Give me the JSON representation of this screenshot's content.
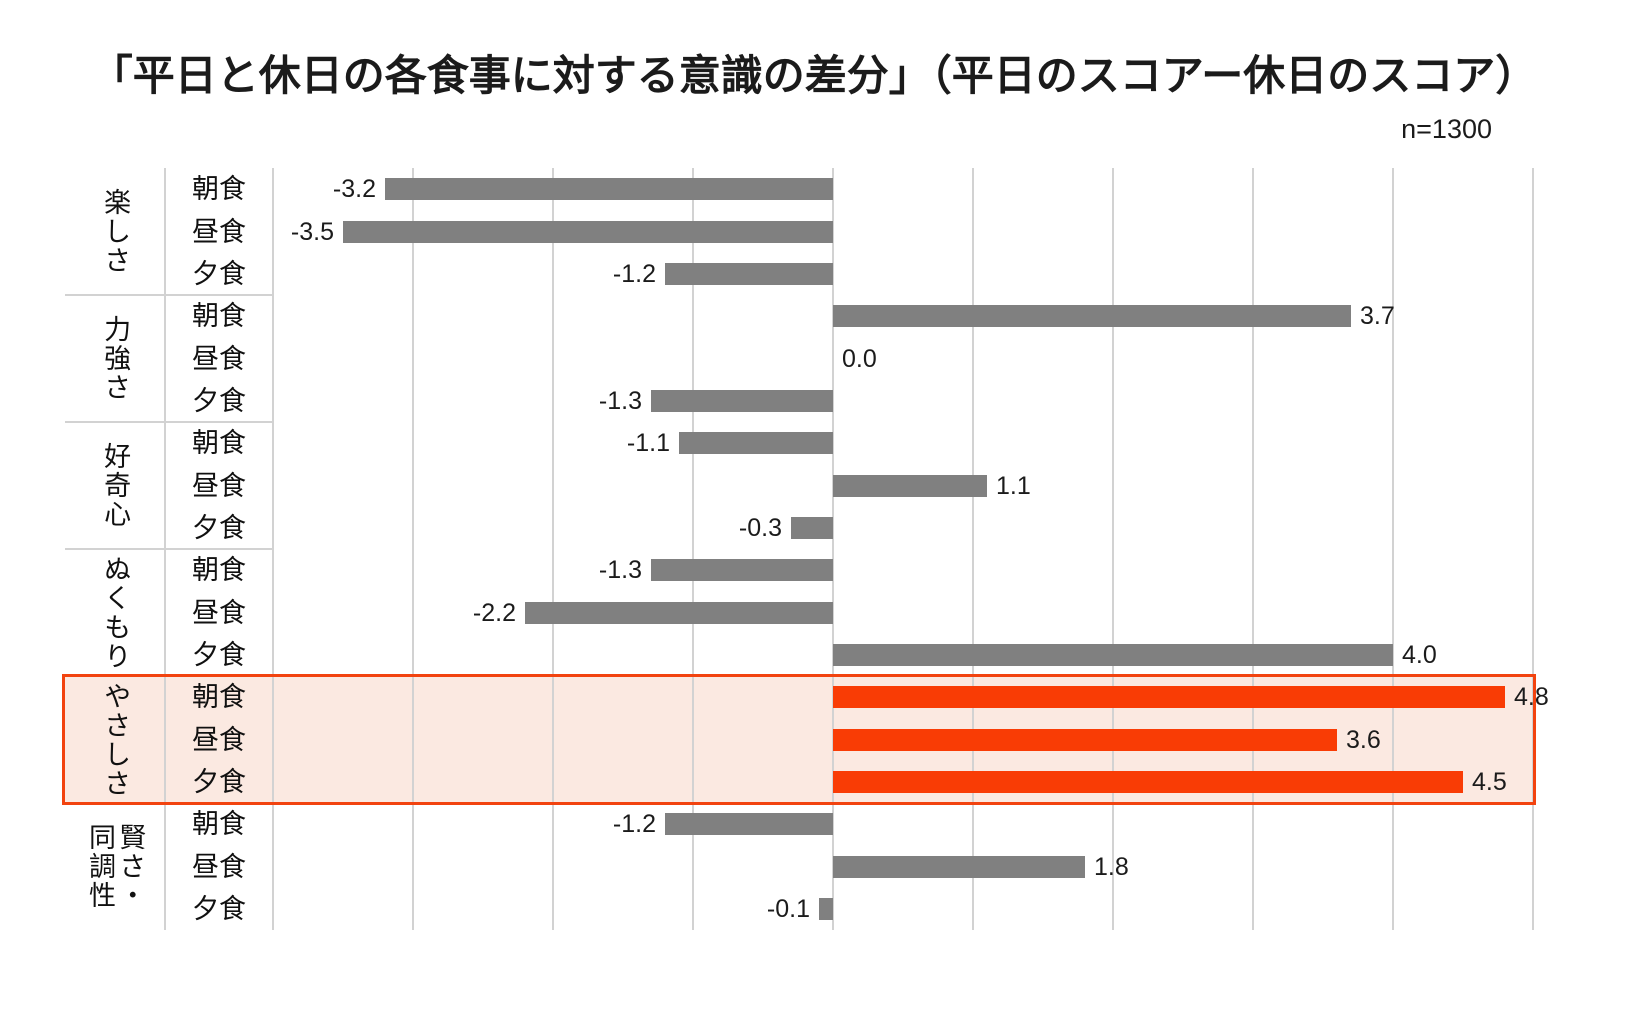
{
  "title": "「平日と休日の各食事に対する意識の差分」（平日のスコアー休日のスコア）",
  "sample_size_label": "n=1300",
  "chart_data": {
    "type": "bar",
    "orientation": "horizontal",
    "title": "「平日と休日の各食事に対する意識の差分」（平日のスコアー休日のスコア）",
    "sample_size": "n=1300",
    "xlim": [
      -4,
      5
    ],
    "gridline_step": 1,
    "grid": true,
    "value_format": "one-decimal",
    "groups": [
      {
        "label": "楽しさ",
        "highlight": false,
        "rows": [
          {
            "meal": "朝食",
            "value": -3.2
          },
          {
            "meal": "昼食",
            "value": -3.5
          },
          {
            "meal": "夕食",
            "value": -1.2
          }
        ]
      },
      {
        "label": "力強さ",
        "highlight": false,
        "rows": [
          {
            "meal": "朝食",
            "value": 3.7
          },
          {
            "meal": "昼食",
            "value": 0.0
          },
          {
            "meal": "夕食",
            "value": -1.3
          }
        ]
      },
      {
        "label": "好奇心",
        "highlight": false,
        "rows": [
          {
            "meal": "朝食",
            "value": -1.1
          },
          {
            "meal": "昼食",
            "value": 1.1
          },
          {
            "meal": "夕食",
            "value": -0.3
          }
        ]
      },
      {
        "label": "ぬくもり",
        "highlight": false,
        "rows": [
          {
            "meal": "朝食",
            "value": -1.3
          },
          {
            "meal": "昼食",
            "value": -2.2
          },
          {
            "meal": "夕食",
            "value": 4.0
          }
        ]
      },
      {
        "label": "やさしさ",
        "highlight": true,
        "rows": [
          {
            "meal": "朝食",
            "value": 4.8
          },
          {
            "meal": "昼食",
            "value": 3.6
          },
          {
            "meal": "夕食",
            "value": 4.5
          }
        ]
      },
      {
        "label": "賢さ・\n同調性",
        "highlight": false,
        "rows": [
          {
            "meal": "朝食",
            "value": -1.2
          },
          {
            "meal": "昼食",
            "value": 1.8
          },
          {
            "meal": "夕食",
            "value": -0.1
          }
        ]
      }
    ],
    "colors": {
      "bar_default": "#808080",
      "bar_highlight": "#f93c05",
      "highlight_bg": "#fbe9e1",
      "highlight_border": "#f2430f",
      "gridline": "#d2d2d2",
      "text": "#1b1b1b"
    }
  }
}
